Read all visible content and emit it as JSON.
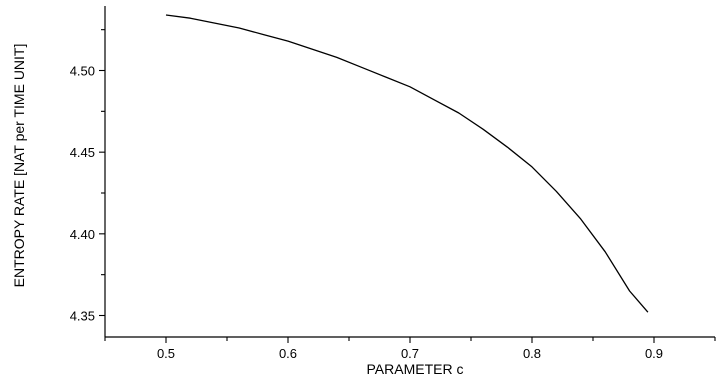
{
  "chart_data": {
    "type": "line",
    "title": "",
    "xlabel": "PARAMETER c",
    "ylabel": "ENTROPY RATE [NAT per TIME UNIT]",
    "xlim": [
      0.45,
      0.95
    ],
    "ylim": [
      4.34,
      4.54
    ],
    "x_ticks": [
      0.5,
      0.6,
      0.7,
      0.8,
      0.9
    ],
    "x_tick_labels": [
      "0.5",
      "0.6",
      "0.7",
      "0.8",
      "0.9"
    ],
    "y_ticks": [
      4.35,
      4.4,
      4.45,
      4.5
    ],
    "y_tick_labels": [
      "4.35",
      "4.40",
      "4.45",
      "4.50"
    ],
    "grid": false,
    "legend": "none",
    "line_color": "#000000",
    "series": [
      {
        "x": [
          0.5,
          0.52,
          0.54,
          0.56,
          0.58,
          0.6,
          0.62,
          0.64,
          0.66,
          0.68,
          0.7,
          0.72,
          0.74,
          0.76,
          0.78,
          0.8,
          0.82,
          0.84,
          0.86,
          0.88,
          0.895
        ],
        "y": [
          4.534,
          4.532,
          4.529,
          4.526,
          4.522,
          4.518,
          4.513,
          4.508,
          4.502,
          4.496,
          4.49,
          4.482,
          4.474,
          4.464,
          4.453,
          4.441,
          4.426,
          4.409,
          4.389,
          4.365,
          4.352
        ]
      }
    ]
  }
}
